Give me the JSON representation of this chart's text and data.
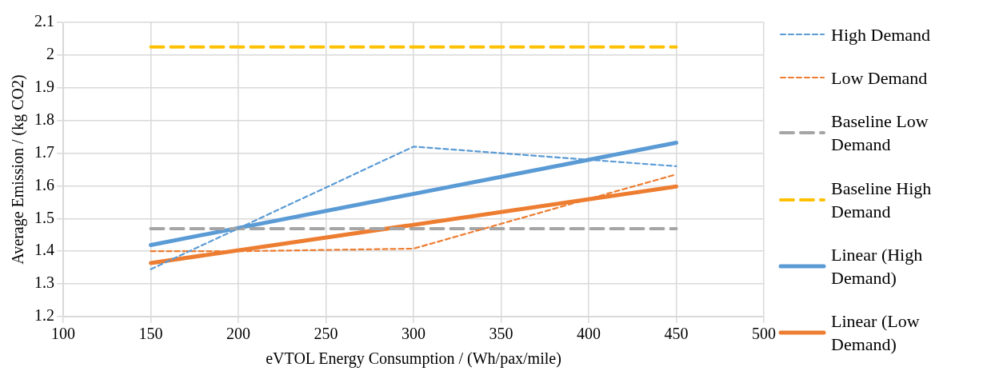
{
  "chart_data": {
    "type": "line",
    "xlabel": "eVTOL Energy Consumption / (Wh/pax/mile)",
    "ylabel": "Average Emission / (kg CO2)",
    "xlim": [
      100,
      500
    ],
    "xticks": [
      100,
      150,
      200,
      250,
      300,
      350,
      400,
      450,
      500
    ],
    "ylim": [
      1.2,
      2.1
    ],
    "yticks": [
      1.2,
      1.3,
      1.4,
      1.5,
      1.6,
      1.7,
      1.8,
      1.9,
      2,
      2.1
    ],
    "grid": true,
    "legend": "right",
    "marker": "none",
    "series": [
      {
        "name": "High Demand",
        "color": "#5b9bd5",
        "line_style": "dotted",
        "x": [
          150,
          200,
          300,
          400,
          450
        ],
        "values": [
          1.345,
          1.47,
          1.72,
          1.68,
          1.66
        ]
      },
      {
        "name": "Low Demand",
        "color": "#ed7d31",
        "line_style": "dotted",
        "x": [
          150,
          200,
          300,
          400,
          450
        ],
        "values": [
          1.4,
          1.4,
          1.408,
          1.56,
          1.635
        ]
      },
      {
        "name": "Baseline Low Demand",
        "color": "#a5a5a5",
        "line_style": "dashed",
        "x": [
          150,
          450
        ],
        "values": [
          1.469,
          1.469
        ]
      },
      {
        "name": "Baseline High Demand",
        "color": "#ffc000",
        "line_style": "dashed",
        "x": [
          150,
          450
        ],
        "values": [
          2.025,
          2.025
        ]
      },
      {
        "name": "Linear (High Demand)",
        "color": "#5b9bd5",
        "line_style": "solid",
        "x": [
          150,
          450
        ],
        "values": [
          1.419,
          1.732
        ]
      },
      {
        "name": "Linear (Low Demand)",
        "color": "#ed7d31",
        "line_style": "solid",
        "x": [
          150,
          450
        ],
        "values": [
          1.364,
          1.598
        ]
      }
    ]
  }
}
